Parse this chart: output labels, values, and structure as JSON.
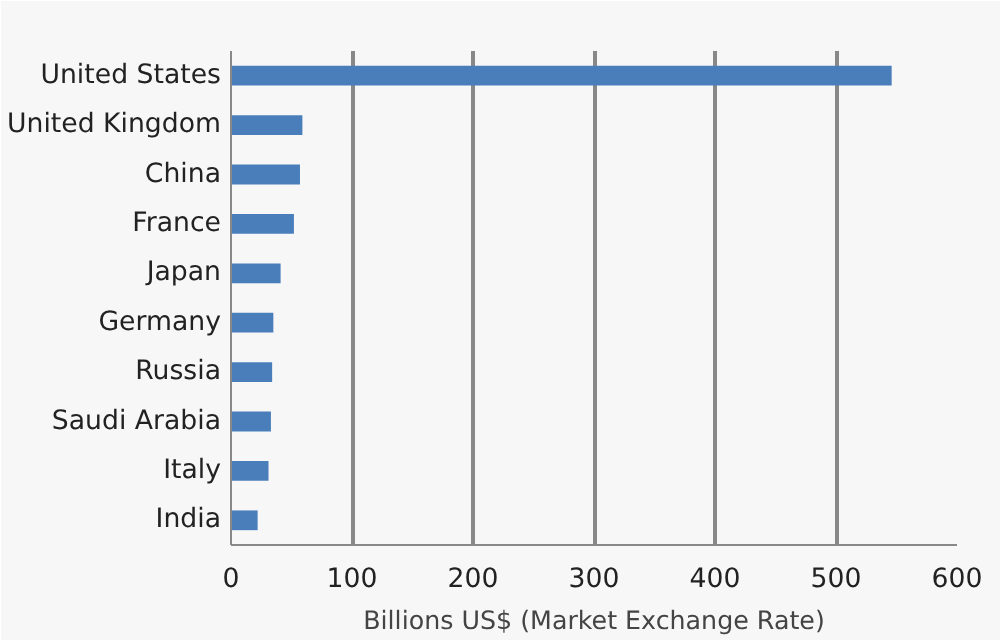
{
  "chart_data": {
    "type": "bar",
    "orientation": "horizontal",
    "xlabel": "Billions US$ (Market Exchange Rate)",
    "categories": [
      "United States",
      "United Kingdom",
      "China",
      "France",
      "Japan",
      "Germany",
      "Russia",
      "Saudi Arabia",
      "Italy",
      "India"
    ],
    "values": [
      546,
      59,
      57,
      52,
      41,
      35,
      34,
      33,
      31,
      22
    ],
    "color": "#4a7ebb",
    "xlim": [
      0,
      600
    ],
    "xticks": [
      0,
      100,
      200,
      300,
      400,
      500,
      600
    ],
    "grid": "x"
  }
}
